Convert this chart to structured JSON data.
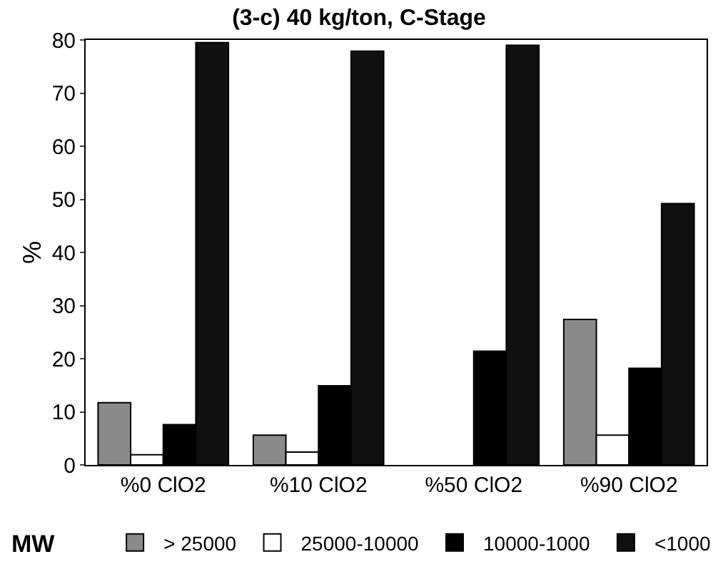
{
  "chart_data": {
    "type": "bar",
    "title": "(3-c) 40 kg/ton, C-Stage",
    "ylabel": "%",
    "legend_title": "MW",
    "categories": [
      "%0 ClO2",
      "%10 ClO2",
      "%50 ClO2",
      "%90 ClO2"
    ],
    "series": [
      {
        "name": "> 25000",
        "color": "#8a8a8a",
        "values": [
          11.7,
          5.6,
          0,
          27.4
        ]
      },
      {
        "name": "25000-10000",
        "color": "#ffffff",
        "values": [
          1.9,
          2.4,
          0,
          5.6
        ]
      },
      {
        "name": "10000-1000",
        "color": "#000000",
        "values": [
          7.6,
          14.9,
          21.4,
          18.2
        ]
      },
      {
        "name": "<1000",
        "color": "#101010",
        "values": [
          79.5,
          77.9,
          79.0,
          49.2
        ]
      }
    ],
    "ylim": [
      0,
      80
    ],
    "yticks": [
      0,
      10,
      20,
      30,
      40,
      50,
      60,
      70,
      80
    ],
    "legend": "bottom"
  }
}
